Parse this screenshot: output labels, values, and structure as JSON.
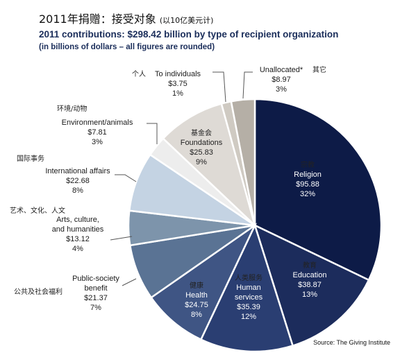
{
  "header": {
    "cn_title": "2011年捐赠：接受对象",
    "cn_note": "(以10亿美元计)",
    "en_title": "2011 contributions: $298.42 billion by type of recipient organization",
    "en_subtitle": "(in billions of dollars – all figures are rounded)"
  },
  "source": "Source: The Giving Institute",
  "chart_data": {
    "type": "pie",
    "title": "2011 contributions: $298.42 billion by type of recipient organization",
    "subtitle": "(in billions of dollars – all figures are rounded)",
    "total": 298.42,
    "slices": [
      {
        "name": "Religion",
        "cn": "宗教",
        "label_lines": [
          "Religion"
        ],
        "value": 95.88,
        "value_text": "$95.88",
        "pct_text": "32%",
        "color": "#0d1b47"
      },
      {
        "name": "Education",
        "cn": "教育",
        "label_lines": [
          "Education"
        ],
        "value": 38.87,
        "value_text": "$38.87",
        "pct_text": "13%",
        "color": "#1c2c5c"
      },
      {
        "name": "Human services",
        "cn": "人类服务",
        "label_lines": [
          "Human",
          "services"
        ],
        "value": 35.39,
        "value_text": "$35.39",
        "pct_text": "12%",
        "color": "#2a3e72"
      },
      {
        "name": "Health",
        "cn": "健康",
        "label_lines": [
          "Health"
        ],
        "value": 24.75,
        "value_text": "$24.75",
        "pct_text": "8%",
        "color": "#3f5584"
      },
      {
        "name": "Public-society benefit",
        "cn": "公共及社会福利",
        "label_lines": [
          "Public-society",
          "benefit"
        ],
        "value": 21.37,
        "value_text": "$21.37",
        "pct_text": "7%",
        "color": "#5a7394"
      },
      {
        "name": "Arts, culture, and humanities",
        "cn": "艺术、文化、人文",
        "label_lines": [
          "Arts, culture,",
          "and humanities"
        ],
        "value": 13.12,
        "value_text": "$13.12",
        "pct_text": "4%",
        "color": "#7d94ab"
      },
      {
        "name": "International affairs",
        "cn": "国际事务",
        "label_lines": [
          "International affairs"
        ],
        "value": 22.68,
        "value_text": "$22.68",
        "pct_text": "8%",
        "color": "#c4d3e3"
      },
      {
        "name": "Environment/animals",
        "cn": "环境/动物",
        "label_lines": [
          "Environment/animals"
        ],
        "value": 7.81,
        "value_text": "$7.81",
        "pct_text": "3%",
        "color": "#ededed"
      },
      {
        "name": "Foundations",
        "cn": "基金会",
        "label_lines": [
          "Foundations"
        ],
        "value": 25.83,
        "value_text": "$25.83",
        "pct_text": "9%",
        "color": "#dedad5"
      },
      {
        "name": "To individuals",
        "cn": "个人",
        "label_lines": [
          "To individuals"
        ],
        "value": 3.75,
        "value_text": "$3.75",
        "pct_text": "1%",
        "color": "#cfcac2"
      },
      {
        "name": "Unallocated*",
        "cn": "其它",
        "label_lines": [
          "Unallocated*"
        ],
        "value": 8.97,
        "value_text": "$8.97",
        "pct_text": "3%",
        "color": "#b5afa6"
      }
    ]
  }
}
